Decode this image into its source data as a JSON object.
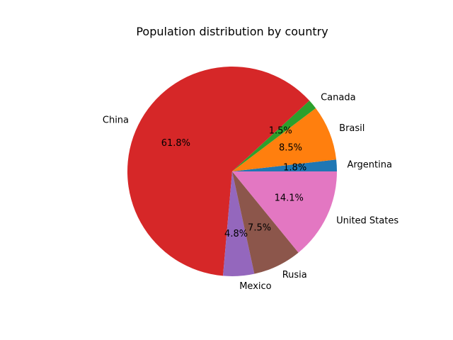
{
  "chart_data": {
    "type": "pie",
    "title": "Population distribution by country",
    "categories": [
      "Argentina",
      "Brasil",
      "Canada",
      "China",
      "Mexico",
      "Rusia",
      "United States"
    ],
    "values": [
      1.8,
      8.5,
      1.5,
      61.8,
      4.8,
      7.5,
      14.1
    ],
    "value_labels": [
      "1.8%",
      "8.5%",
      "1.5%",
      "61.8%",
      "4.8%",
      "7.5%",
      "14.1%"
    ],
    "colors": [
      "#1f77b4",
      "#ff7f0e",
      "#2ca02c",
      "#d62728",
      "#9467bd",
      "#8c564b",
      "#e377c2"
    ],
    "start_angle_deg": 0,
    "direction": "counterclockwise"
  }
}
